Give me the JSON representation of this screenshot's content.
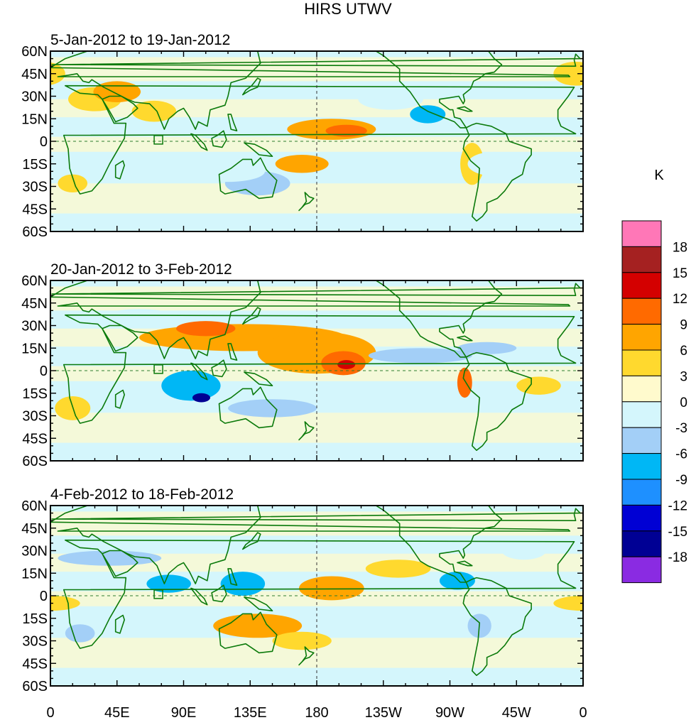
{
  "title": "HIRS UTWV",
  "panels": [
    {
      "period": "5-Jan-2012 to 19-Jan-2012",
      "blobs": [
        {
          "lon": 30,
          "lat": 28,
          "rlon": 18,
          "rlat": 8,
          "v": 5
        },
        {
          "lon": 45,
          "lat": 33,
          "rlon": 16,
          "rlat": 7,
          "v": 7
        },
        {
          "lon": 70,
          "lat": 20,
          "rlon": 15,
          "rlat": 7,
          "v": 4
        },
        {
          "lon": 110,
          "lat": 8,
          "rlon": 18,
          "rlat": 6,
          "v": -3
        },
        {
          "lon": 190,
          "lat": 8,
          "rlon": 30,
          "rlat": 7,
          "v": 7
        },
        {
          "lon": 200,
          "lat": 7,
          "rlon": 14,
          "rlat": 4,
          "v": 10
        },
        {
          "lon": 170,
          "lat": -15,
          "rlon": 18,
          "rlat": 6,
          "v": 7
        },
        {
          "lon": 140,
          "lat": -28,
          "rlon": 22,
          "rlat": 8,
          "v": -4
        },
        {
          "lon": 120,
          "lat": -20,
          "rlon": 25,
          "rlat": 7,
          "v": -3
        },
        {
          "lon": 255,
          "lat": 18,
          "rlon": 12,
          "rlat": 6,
          "v": -8
        },
        {
          "lon": 230,
          "lat": 28,
          "rlon": 22,
          "rlat": 7,
          "v": -3
        },
        {
          "lon": 285,
          "lat": -15,
          "rlon": 8,
          "rlat": 14,
          "v": 5
        },
        {
          "lon": 300,
          "lat": -15,
          "rlon": 18,
          "rlat": 8,
          "v": -3
        },
        {
          "lon": 330,
          "lat": -20,
          "rlon": 12,
          "rlat": 6,
          "v": -3
        },
        {
          "lon": 15,
          "lat": -28,
          "rlon": 10,
          "rlat": 6,
          "v": 3
        },
        {
          "lon": 355,
          "lat": 45,
          "rlon": 15,
          "rlat": 8,
          "v": 3
        }
      ]
    },
    {
      "period": "20-Jan-2012 to 3-Feb-2012",
      "blobs": [
        {
          "lon": 130,
          "lat": 22,
          "rlon": 70,
          "rlat": 9,
          "v": 7
        },
        {
          "lon": 105,
          "lat": 28,
          "rlon": 20,
          "rlat": 5,
          "v": 11
        },
        {
          "lon": 180,
          "lat": 12,
          "rlon": 40,
          "rlat": 14,
          "v": 6
        },
        {
          "lon": 198,
          "lat": 5,
          "rlon": 15,
          "rlat": 8,
          "v": 10
        },
        {
          "lon": 200,
          "lat": 4,
          "rlon": 6,
          "rlat": 3,
          "v": 14
        },
        {
          "lon": 95,
          "lat": -10,
          "rlon": 20,
          "rlat": 10,
          "v": -9
        },
        {
          "lon": 102,
          "lat": -18,
          "rlon": 6,
          "rlat": 3,
          "v": -16
        },
        {
          "lon": 150,
          "lat": -25,
          "rlon": 30,
          "rlat": 6,
          "v": -4
        },
        {
          "lon": 250,
          "lat": 10,
          "rlon": 35,
          "rlat": 5,
          "v": -5
        },
        {
          "lon": 295,
          "lat": 15,
          "rlon": 20,
          "rlat": 4,
          "v": -6
        },
        {
          "lon": 280,
          "lat": -8,
          "rlon": 5,
          "rlat": 10,
          "v": 10
        },
        {
          "lon": 330,
          "lat": -10,
          "rlon": 15,
          "rlat": 6,
          "v": 4
        },
        {
          "lon": 60,
          "lat": 35,
          "rlon": 25,
          "rlat": 6,
          "v": -3
        },
        {
          "lon": 15,
          "lat": -25,
          "rlon": 12,
          "rlat": 8,
          "v": 4
        }
      ]
    },
    {
      "period": "4-Feb-2012 to 18-Feb-2012",
      "blobs": [
        {
          "lon": 40,
          "lat": 25,
          "rlon": 35,
          "rlat": 5,
          "v": -6
        },
        {
          "lon": 80,
          "lat": 8,
          "rlon": 15,
          "rlat": 6,
          "v": -7
        },
        {
          "lon": 130,
          "lat": 8,
          "rlon": 15,
          "rlat": 8,
          "v": -9
        },
        {
          "lon": 190,
          "lat": 5,
          "rlon": 22,
          "rlat": 8,
          "v": 7
        },
        {
          "lon": 235,
          "lat": 18,
          "rlon": 22,
          "rlat": 6,
          "v": 5
        },
        {
          "lon": 140,
          "lat": -20,
          "rlon": 30,
          "rlat": 8,
          "v": 8
        },
        {
          "lon": 170,
          "lat": -30,
          "rlon": 20,
          "rlat": 6,
          "v": 5
        },
        {
          "lon": 275,
          "lat": 10,
          "rlon": 12,
          "rlat": 6,
          "v": -8
        },
        {
          "lon": 290,
          "lat": -20,
          "rlon": 8,
          "rlat": 8,
          "v": -6
        },
        {
          "lon": 20,
          "lat": -25,
          "rlon": 10,
          "rlat": 6,
          "v": -5
        },
        {
          "lon": 0,
          "lat": -5,
          "rlon": 20,
          "rlat": 5,
          "v": 4
        },
        {
          "lon": 320,
          "lat": 30,
          "rlon": 15,
          "rlat": 6,
          "v": -3
        }
      ]
    }
  ],
  "lat_labels": [
    "60N",
    "45N",
    "30N",
    "15N",
    "0",
    "15S",
    "30S",
    "45S",
    "60S"
  ],
  "lon_labels": [
    "0",
    "45E",
    "90E",
    "135E",
    "180",
    "135W",
    "90W",
    "45W",
    "0"
  ],
  "colorbar": {
    "unit": "K",
    "labels": [
      "18",
      "15",
      "12",
      "9",
      "6",
      "3",
      "0",
      "-3",
      "-6",
      "-9",
      "-12",
      "-15",
      "-18"
    ],
    "colors": [
      "#FF77B7",
      "#A52121",
      "#D40000",
      "#FF6A00",
      "#FFA500",
      "#FFD92E",
      "#FFFACD",
      "#D4F6FC",
      "#A3CFF7",
      "#00B7F5",
      "#1E90FF",
      "#0000D4",
      "#000094",
      "#8A2BE2"
    ]
  },
  "styles": {
    "coast_color": "#0B7A0B",
    "grid_color": "#2E7D2E"
  }
}
